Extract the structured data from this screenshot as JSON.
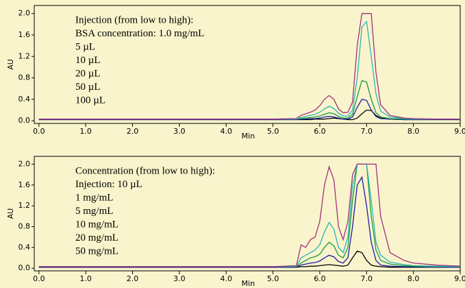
{
  "chart_data": [
    {
      "type": "line",
      "x_label": "Min",
      "y_label": "AU",
      "annotations": [
        "Injection (from low to high):",
        "BSA concentration: 1.0 mg/mL"
      ],
      "x": [
        0,
        1,
        2,
        3,
        4,
        5,
        5.5,
        5.6,
        5.7,
        5.8,
        5.9,
        6.0,
        6.1,
        6.2,
        6.3,
        6.4,
        6.5,
        6.6,
        6.7,
        6.8,
        6.9,
        7.0,
        7.1,
        7.2,
        7.3,
        7.5,
        7.8,
        8.0,
        8.5,
        9.0
      ],
      "xlim": [
        -0.1,
        9.0
      ],
      "xticks": [
        {
          "value": 0,
          "label": "0.0"
        },
        {
          "value": 1,
          "label": "1.0"
        },
        {
          "value": 2,
          "label": "2.0"
        },
        {
          "value": 3,
          "label": "3.0"
        },
        {
          "value": 4,
          "label": "4.0"
        },
        {
          "value": 5,
          "label": "5.0"
        },
        {
          "value": 6,
          "label": "6.0"
        },
        {
          "value": 7,
          "label": "7.0"
        },
        {
          "value": 8,
          "label": "8.0"
        },
        {
          "value": 9,
          "label": "9.0"
        }
      ],
      "ylim": [
        -0.05,
        2.15
      ],
      "yticks": [
        {
          "value": 0,
          "label": "0.0"
        },
        0.4,
        0.8,
        1.2,
        1.6,
        {
          "value": 2,
          "label": "2.0"
        }
      ],
      "series": [
        {
          "name": "5 µL",
          "color": "#000000",
          "values": [
            0.02,
            0.02,
            0.02,
            0.02,
            0.02,
            0.02,
            0.02,
            0.02,
            0.02,
            0.02,
            0.03,
            0.03,
            0.03,
            0.04,
            0.05,
            0.04,
            0.03,
            0.02,
            0.02,
            0.05,
            0.13,
            0.2,
            0.19,
            0.1,
            0.05,
            0.03,
            0.02,
            0.02,
            0.02,
            0.02
          ]
        },
        {
          "name": "10 µL",
          "color": "#1a1aa0",
          "values": [
            0.02,
            0.02,
            0.02,
            0.02,
            0.02,
            0.02,
            0.02,
            0.03,
            0.03,
            0.04,
            0.04,
            0.05,
            0.07,
            0.08,
            0.07,
            0.05,
            0.03,
            0.03,
            0.07,
            0.25,
            0.4,
            0.38,
            0.2,
            0.08,
            0.04,
            0.03,
            0.02,
            0.02,
            0.02,
            0.02
          ]
        },
        {
          "name": "20 µL",
          "color": "#139a3e",
          "values": [
            0.03,
            0.03,
            0.03,
            0.03,
            0.03,
            0.03,
            0.03,
            0.04,
            0.05,
            0.06,
            0.07,
            0.09,
            0.12,
            0.15,
            0.13,
            0.08,
            0.05,
            0.05,
            0.12,
            0.45,
            0.75,
            0.72,
            0.4,
            0.15,
            0.07,
            0.04,
            0.03,
            0.03,
            0.03,
            0.03
          ]
        },
        {
          "name": "50 µL",
          "color": "#2bb5b5",
          "values": [
            0.03,
            0.03,
            0.03,
            0.03,
            0.03,
            0.03,
            0.03,
            0.06,
            0.08,
            0.1,
            0.12,
            0.16,
            0.22,
            0.27,
            0.23,
            0.14,
            0.09,
            0.09,
            0.2,
            0.8,
            1.75,
            1.85,
            1.2,
            0.5,
            0.18,
            0.07,
            0.04,
            0.03,
            0.03,
            0.03
          ]
        },
        {
          "name": "100 µL",
          "color": "#a0307a",
          "values": [
            0.03,
            0.03,
            0.03,
            0.03,
            0.03,
            0.03,
            0.04,
            0.1,
            0.13,
            0.16,
            0.2,
            0.28,
            0.4,
            0.47,
            0.4,
            0.22,
            0.15,
            0.16,
            0.35,
            1.4,
            2.0,
            2.0,
            2.0,
            0.9,
            0.3,
            0.1,
            0.05,
            0.04,
            0.03,
            0.03
          ]
        }
      ]
    },
    {
      "type": "line",
      "x_label": "Min",
      "y_label": "AU",
      "annotations": [
        "Concentration (from low to high):",
        "Injection: 10 µL"
      ],
      "x": [
        0,
        1,
        2,
        3,
        4,
        5,
        5.5,
        5.6,
        5.7,
        5.8,
        5.9,
        6.0,
        6.1,
        6.2,
        6.3,
        6.4,
        6.5,
        6.6,
        6.7,
        6.8,
        6.9,
        7.0,
        7.1,
        7.2,
        7.3,
        7.5,
        7.8,
        8.0,
        8.5,
        9.0
      ],
      "xlim": [
        -0.1,
        9.0
      ],
      "xticks": [
        {
          "value": 0,
          "label": "0.0"
        },
        {
          "value": 1,
          "label": "1.0"
        },
        {
          "value": 2,
          "label": "2.0"
        },
        {
          "value": 3,
          "label": "3.0"
        },
        {
          "value": 4,
          "label": "4.0"
        },
        {
          "value": 5,
          "label": "5.0"
        },
        {
          "value": 6,
          "label": "6.0"
        },
        {
          "value": 7,
          "label": "7.0"
        },
        {
          "value": 8,
          "label": "8.0"
        },
        {
          "value": 9,
          "label": "9.0"
        }
      ],
      "ylim": [
        -0.05,
        2.15
      ],
      "yticks": [
        {
          "value": 0,
          "label": "0.0"
        },
        0.4,
        0.8,
        1.2,
        1.6,
        {
          "value": 2,
          "label": "2.0"
        }
      ],
      "series": [
        {
          "name": "1 mg/mL",
          "color": "#000000",
          "values": [
            0.02,
            0.02,
            0.02,
            0.02,
            0.02,
            0.02,
            0.02,
            0.03,
            0.03,
            0.04,
            0.04,
            0.05,
            0.06,
            0.07,
            0.06,
            0.05,
            0.04,
            0.06,
            0.2,
            0.33,
            0.3,
            0.15,
            0.06,
            0.04,
            0.03,
            0.02,
            0.02,
            0.02,
            0.02,
            0.02
          ]
        },
        {
          "name": "5 mg/mL",
          "color": "#1a1aa0",
          "values": [
            0.02,
            0.02,
            0.02,
            0.02,
            0.02,
            0.02,
            0.02,
            0.06,
            0.08,
            0.1,
            0.11,
            0.14,
            0.2,
            0.25,
            0.22,
            0.13,
            0.1,
            0.2,
            0.8,
            1.6,
            1.75,
            1.2,
            0.5,
            0.15,
            0.06,
            0.04,
            0.03,
            0.03,
            0.02,
            0.02
          ]
        },
        {
          "name": "10 mg/mL",
          "color": "#139a3e",
          "values": [
            0.03,
            0.03,
            0.03,
            0.03,
            0.03,
            0.03,
            0.03,
            0.1,
            0.15,
            0.2,
            0.22,
            0.27,
            0.4,
            0.5,
            0.43,
            0.25,
            0.2,
            0.4,
            1.3,
            2.0,
            2.0,
            2.0,
            1.0,
            0.35,
            0.15,
            0.08,
            0.05,
            0.04,
            0.03,
            0.03
          ]
        },
        {
          "name": "20 mg/mL",
          "color": "#2bb5b5",
          "values": [
            0.03,
            0.03,
            0.03,
            0.03,
            0.03,
            0.03,
            0.04,
            0.2,
            0.25,
            0.3,
            0.35,
            0.45,
            0.7,
            0.88,
            0.75,
            0.4,
            0.3,
            0.6,
            1.6,
            2.0,
            2.0,
            2.0,
            1.3,
            0.5,
            0.25,
            0.12,
            0.07,
            0.05,
            0.04,
            0.03
          ]
        },
        {
          "name": "50 mg/mL",
          "color": "#a0307a",
          "values": [
            0.03,
            0.03,
            0.03,
            0.03,
            0.03,
            0.03,
            0.05,
            0.45,
            0.4,
            0.55,
            0.6,
            0.9,
            1.6,
            1.95,
            1.7,
            0.8,
            0.55,
            0.9,
            1.8,
            2.0,
            2.0,
            2.0,
            2.0,
            2.0,
            1.0,
            0.3,
            0.15,
            0.1,
            0.06,
            0.04
          ]
        }
      ]
    }
  ]
}
